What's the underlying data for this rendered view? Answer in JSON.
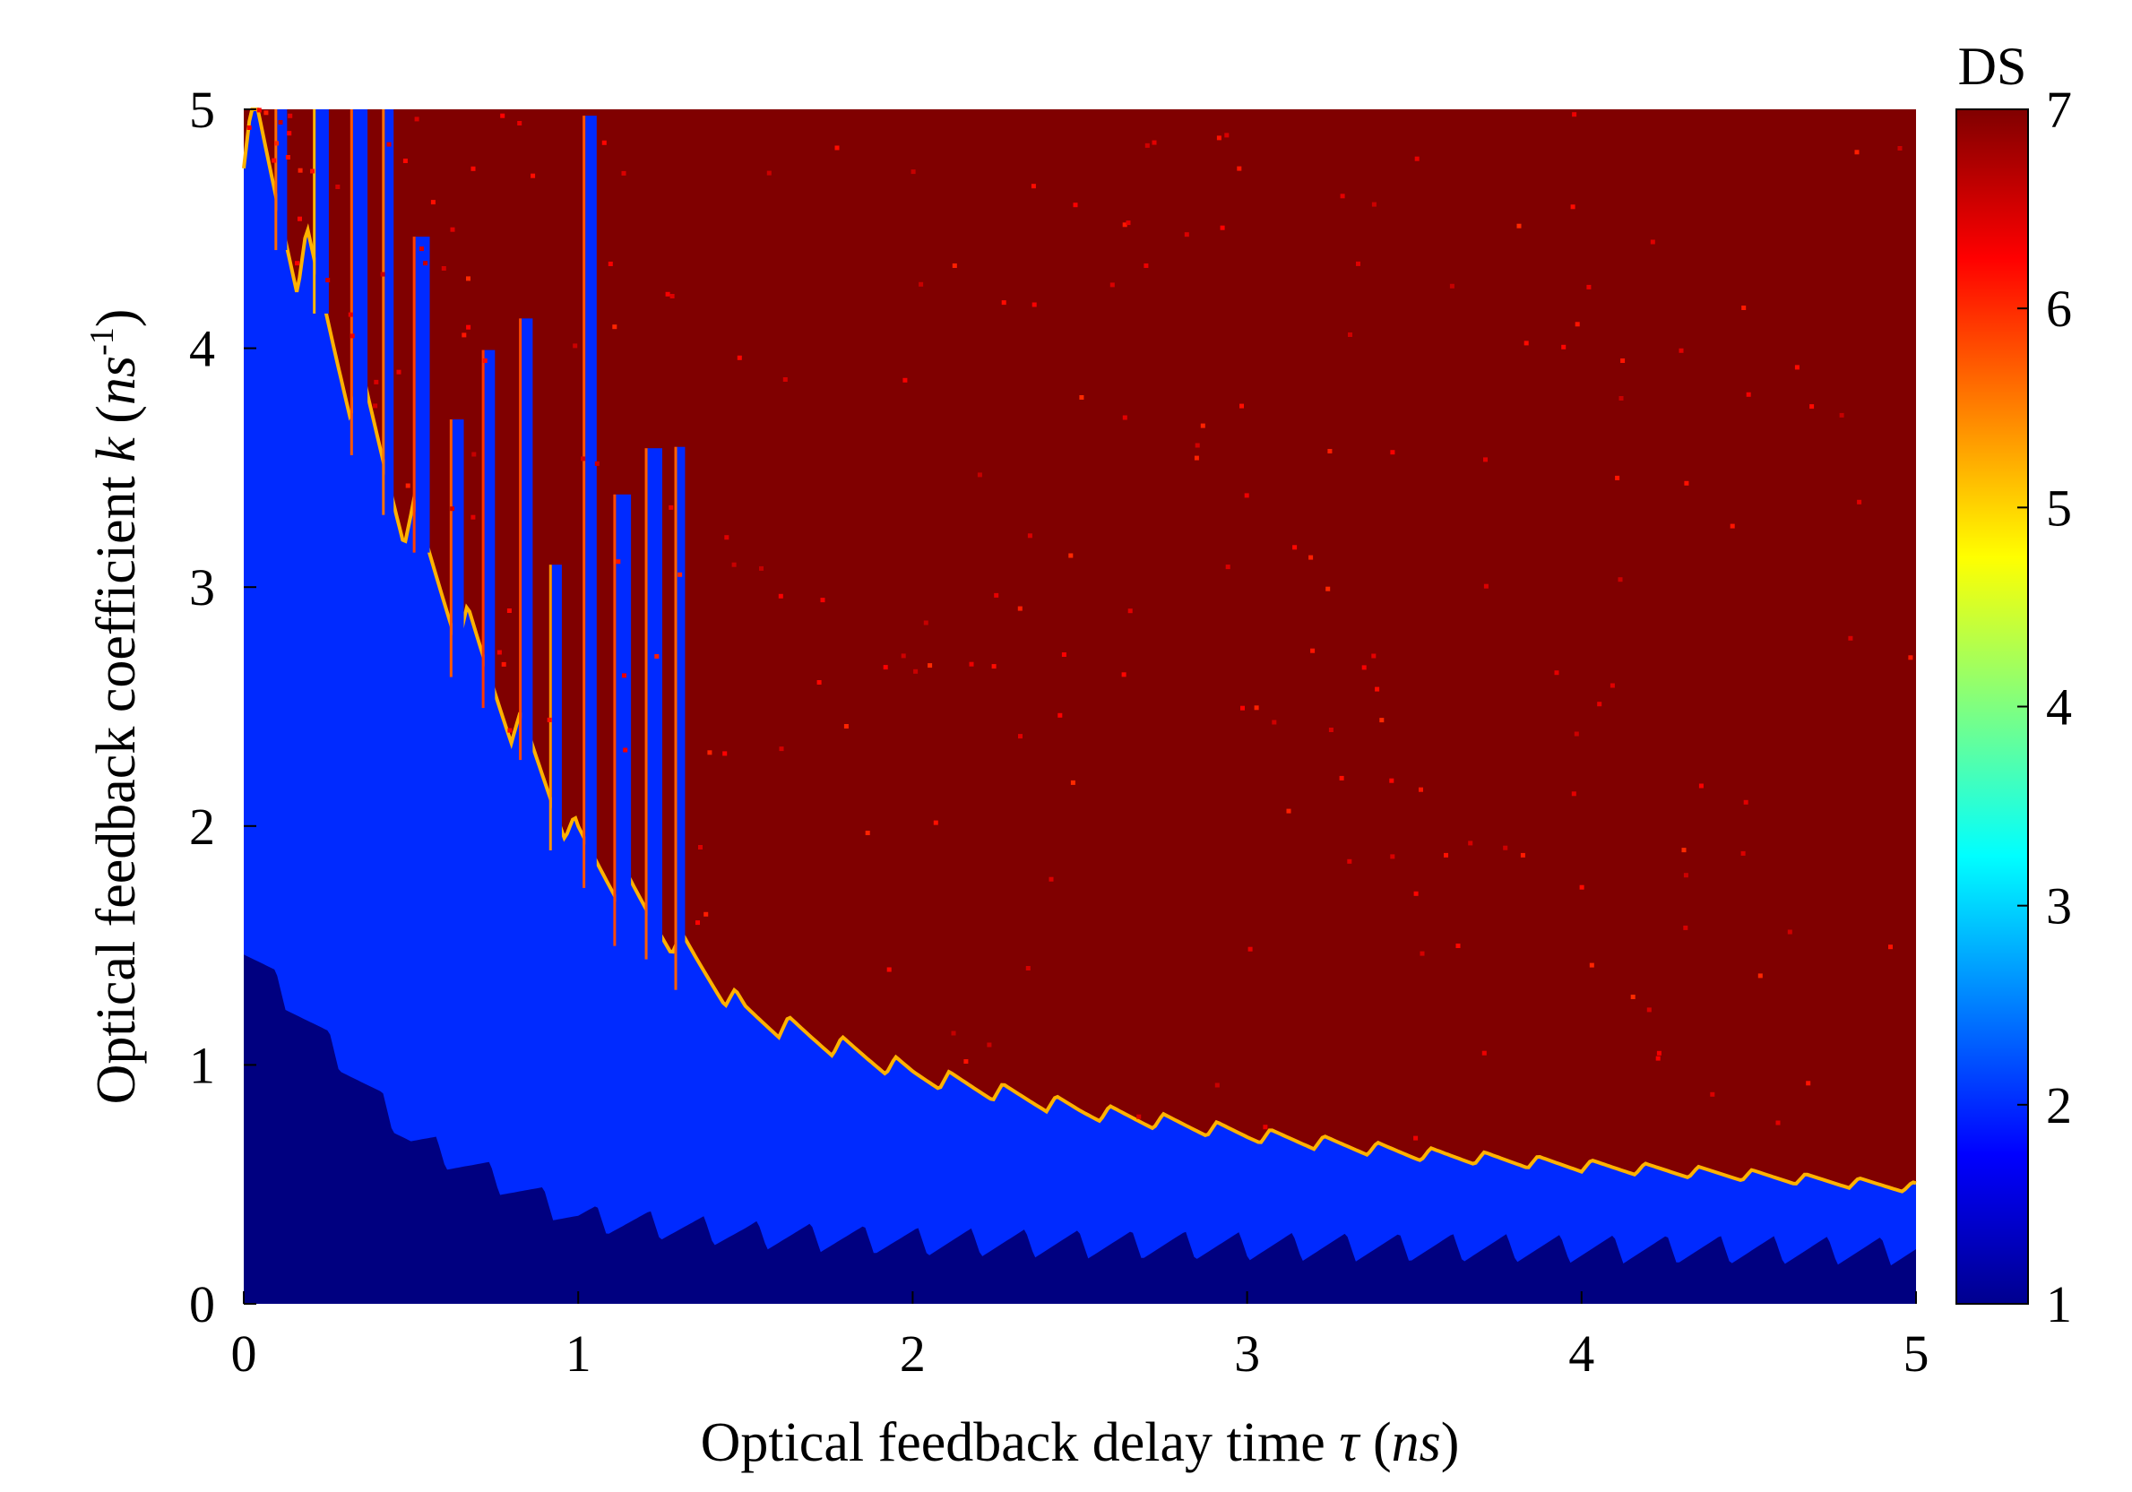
{
  "chart_data": {
    "type": "heatmap",
    "title": "",
    "xlabel_main": "Optical feedback delay time ",
    "xlabel_symbol": "τ",
    "xlabel_unit_open": " (",
    "xlabel_unit": "ns",
    "xlabel_unit_close": ")",
    "ylabel_main": "Optical feedback coefficient ",
    "ylabel_symbol": "k",
    "ylabel_unit_open": " (",
    "ylabel_unit": "ns",
    "ylabel_exponent": "-1",
    "ylabel_unit_close": ")",
    "xlim": [
      0,
      5
    ],
    "ylim": [
      0,
      5
    ],
    "x_ticks": [
      "0",
      "1",
      "2",
      "3",
      "4",
      "5"
    ],
    "y_ticks": [
      "0",
      "1",
      "2",
      "3",
      "4",
      "5"
    ],
    "colorbar": {
      "title": "DS",
      "range": [
        1,
        7
      ],
      "ticks": [
        "1",
        "2",
        "3",
        "4",
        "5",
        "6",
        "7"
      ],
      "colormap": "jet"
    },
    "regions": {
      "low_k_ds": 1,
      "intermediate_band_ds": 2,
      "chaotic_region_ds": 7
    },
    "boundary_ds7_lower_k": [
      {
        "tau": 0.0,
        "k": 4.9
      },
      {
        "tau": 0.5,
        "k": 3.2
      },
      {
        "tau": 1.0,
        "k": 1.9
      },
      {
        "tau": 1.5,
        "k": 1.2
      },
      {
        "tau": 2.0,
        "k": 0.95
      },
      {
        "tau": 2.5,
        "k": 0.8
      },
      {
        "tau": 3.0,
        "k": 0.7
      },
      {
        "tau": 3.5,
        "k": 0.62
      },
      {
        "tau": 4.0,
        "k": 0.57
      },
      {
        "tau": 4.5,
        "k": 0.53
      },
      {
        "tau": 5.0,
        "k": 0.48
      }
    ],
    "boundary_ds1_upper_k": [
      {
        "tau": 0.0,
        "k": 1.55
      },
      {
        "tau": 0.5,
        "k": 0.75
      },
      {
        "tau": 1.0,
        "k": 0.42
      },
      {
        "tau": 1.5,
        "k": 0.35
      },
      {
        "tau": 2.0,
        "k": 0.32
      },
      {
        "tau": 3.0,
        "k": 0.3
      },
      {
        "tau": 4.0,
        "k": 0.29
      },
      {
        "tau": 5.0,
        "k": 0.28
      }
    ],
    "boundary_tooth_period_ns": 0.16
  }
}
